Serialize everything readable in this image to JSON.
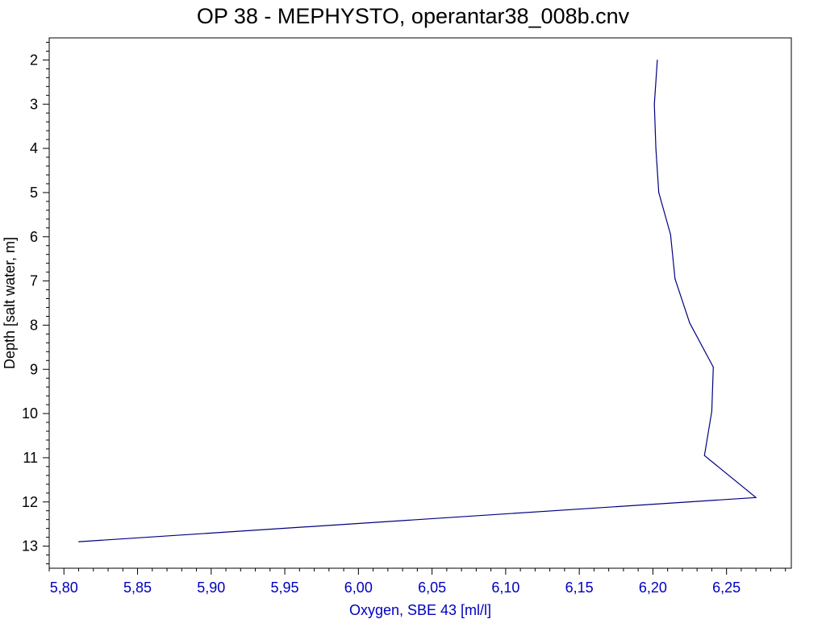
{
  "chart_data": {
    "type": "line",
    "title": "OP 38 - MEPHYSTO, operantar38_008b.cnv",
    "xlabel": "Oxygen, SBE 43 [ml/l]",
    "ylabel": "Depth [salt water, m]",
    "xlim": [
      5.79,
      6.294
    ],
    "ylim": [
      1.5,
      13.5
    ],
    "y_inverted": true,
    "grid": false,
    "x_ticks": [
      5.8,
      5.85,
      5.9,
      5.95,
      6.0,
      6.05,
      6.1,
      6.15,
      6.2,
      6.25
    ],
    "x_tick_labels": [
      "5,80",
      "5,85",
      "5,90",
      "5,95",
      "6,00",
      "6,05",
      "6,10",
      "6,15",
      "6,20",
      "6,25"
    ],
    "y_ticks": [
      2,
      3,
      4,
      5,
      6,
      7,
      8,
      9,
      10,
      11,
      12,
      13
    ],
    "y_tick_labels": [
      "2",
      "3",
      "4",
      "5",
      "6",
      "7",
      "8",
      "9",
      "10",
      "11",
      "12",
      "13"
    ],
    "series": [
      {
        "color": "#000080",
        "points": [
          {
            "x": 6.203,
            "y": 2.0
          },
          {
            "x": 6.201,
            "y": 3.0
          },
          {
            "x": 6.202,
            "y": 4.0
          },
          {
            "x": 6.204,
            "y": 5.0
          },
          {
            "x": 6.212,
            "y": 5.95
          },
          {
            "x": 6.215,
            "y": 6.95
          },
          {
            "x": 6.225,
            "y": 7.95
          },
          {
            "x": 6.241,
            "y": 8.95
          },
          {
            "x": 6.24,
            "y": 9.95
          },
          {
            "x": 6.235,
            "y": 10.95
          },
          {
            "x": 6.27,
            "y": 11.9
          },
          {
            "x": 5.81,
            "y": 12.9
          }
        ]
      }
    ],
    "colors": {
      "axis": "#000000",
      "x_axis_text": "#0000c0",
      "y_axis_text": "#000000",
      "line": "#000080",
      "background": "#ffffff"
    }
  }
}
